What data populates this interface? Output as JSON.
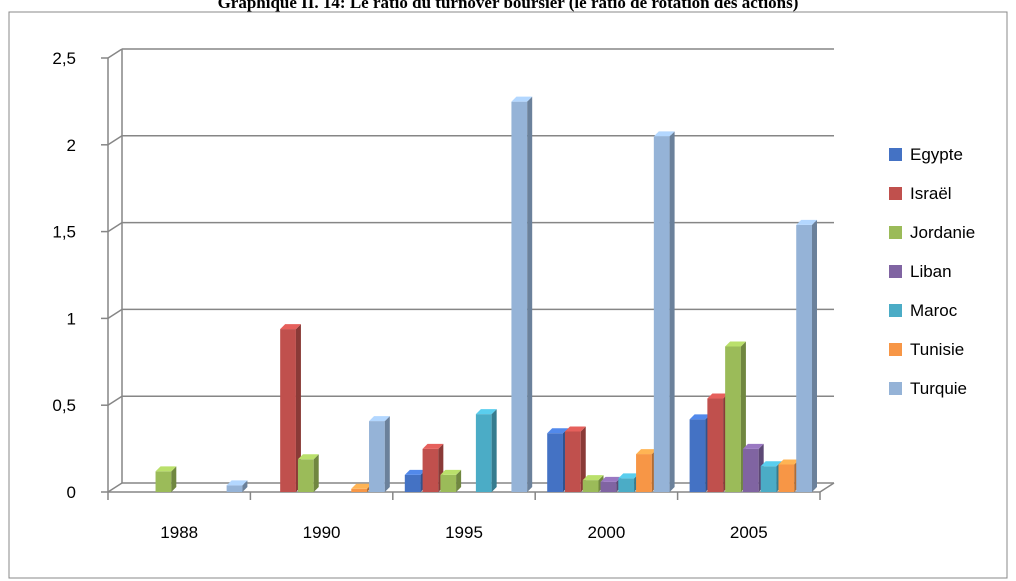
{
  "chart_data": {
    "type": "bar",
    "title": "Graphique II. 14: Le ratio du turnover boursier (le ratio de rotation des actions)",
    "xlabel": "",
    "ylabel": "",
    "ylim": [
      0,
      2.5
    ],
    "yticks": [
      "0",
      "0,5",
      "1",
      "1,5",
      "2",
      "2,5"
    ],
    "categories": [
      "1988",
      "1990",
      "1995",
      "2000",
      "2005"
    ],
    "grid": true,
    "legend_position": "right",
    "series": [
      {
        "name": "Egypte",
        "color": "#4472C4",
        "values": [
          0,
          0,
          0.11,
          0.35,
          0.43
        ]
      },
      {
        "name": "Israël",
        "color": "#C0504D",
        "values": [
          0,
          0.95,
          0.26,
          0.36,
          0.55
        ]
      },
      {
        "name": "Jordanie",
        "color": "#9BBB59",
        "values": [
          0.13,
          0.2,
          0.11,
          0.08,
          0.85
        ]
      },
      {
        "name": "Liban",
        "color": "#8064A2",
        "values": [
          0,
          0,
          0,
          0.07,
          0.26
        ]
      },
      {
        "name": "Maroc",
        "color": "#4BACC6",
        "values": [
          0,
          0,
          0.46,
          0.09,
          0.16
        ]
      },
      {
        "name": "Tunisie",
        "color": "#F79646",
        "values": [
          0,
          0.03,
          0,
          0.23,
          0.17
        ]
      },
      {
        "name": "Turquie",
        "color": "#95B3D7",
        "values": [
          0.05,
          0.42,
          2.26,
          2.06,
          1.55
        ]
      }
    ]
  }
}
